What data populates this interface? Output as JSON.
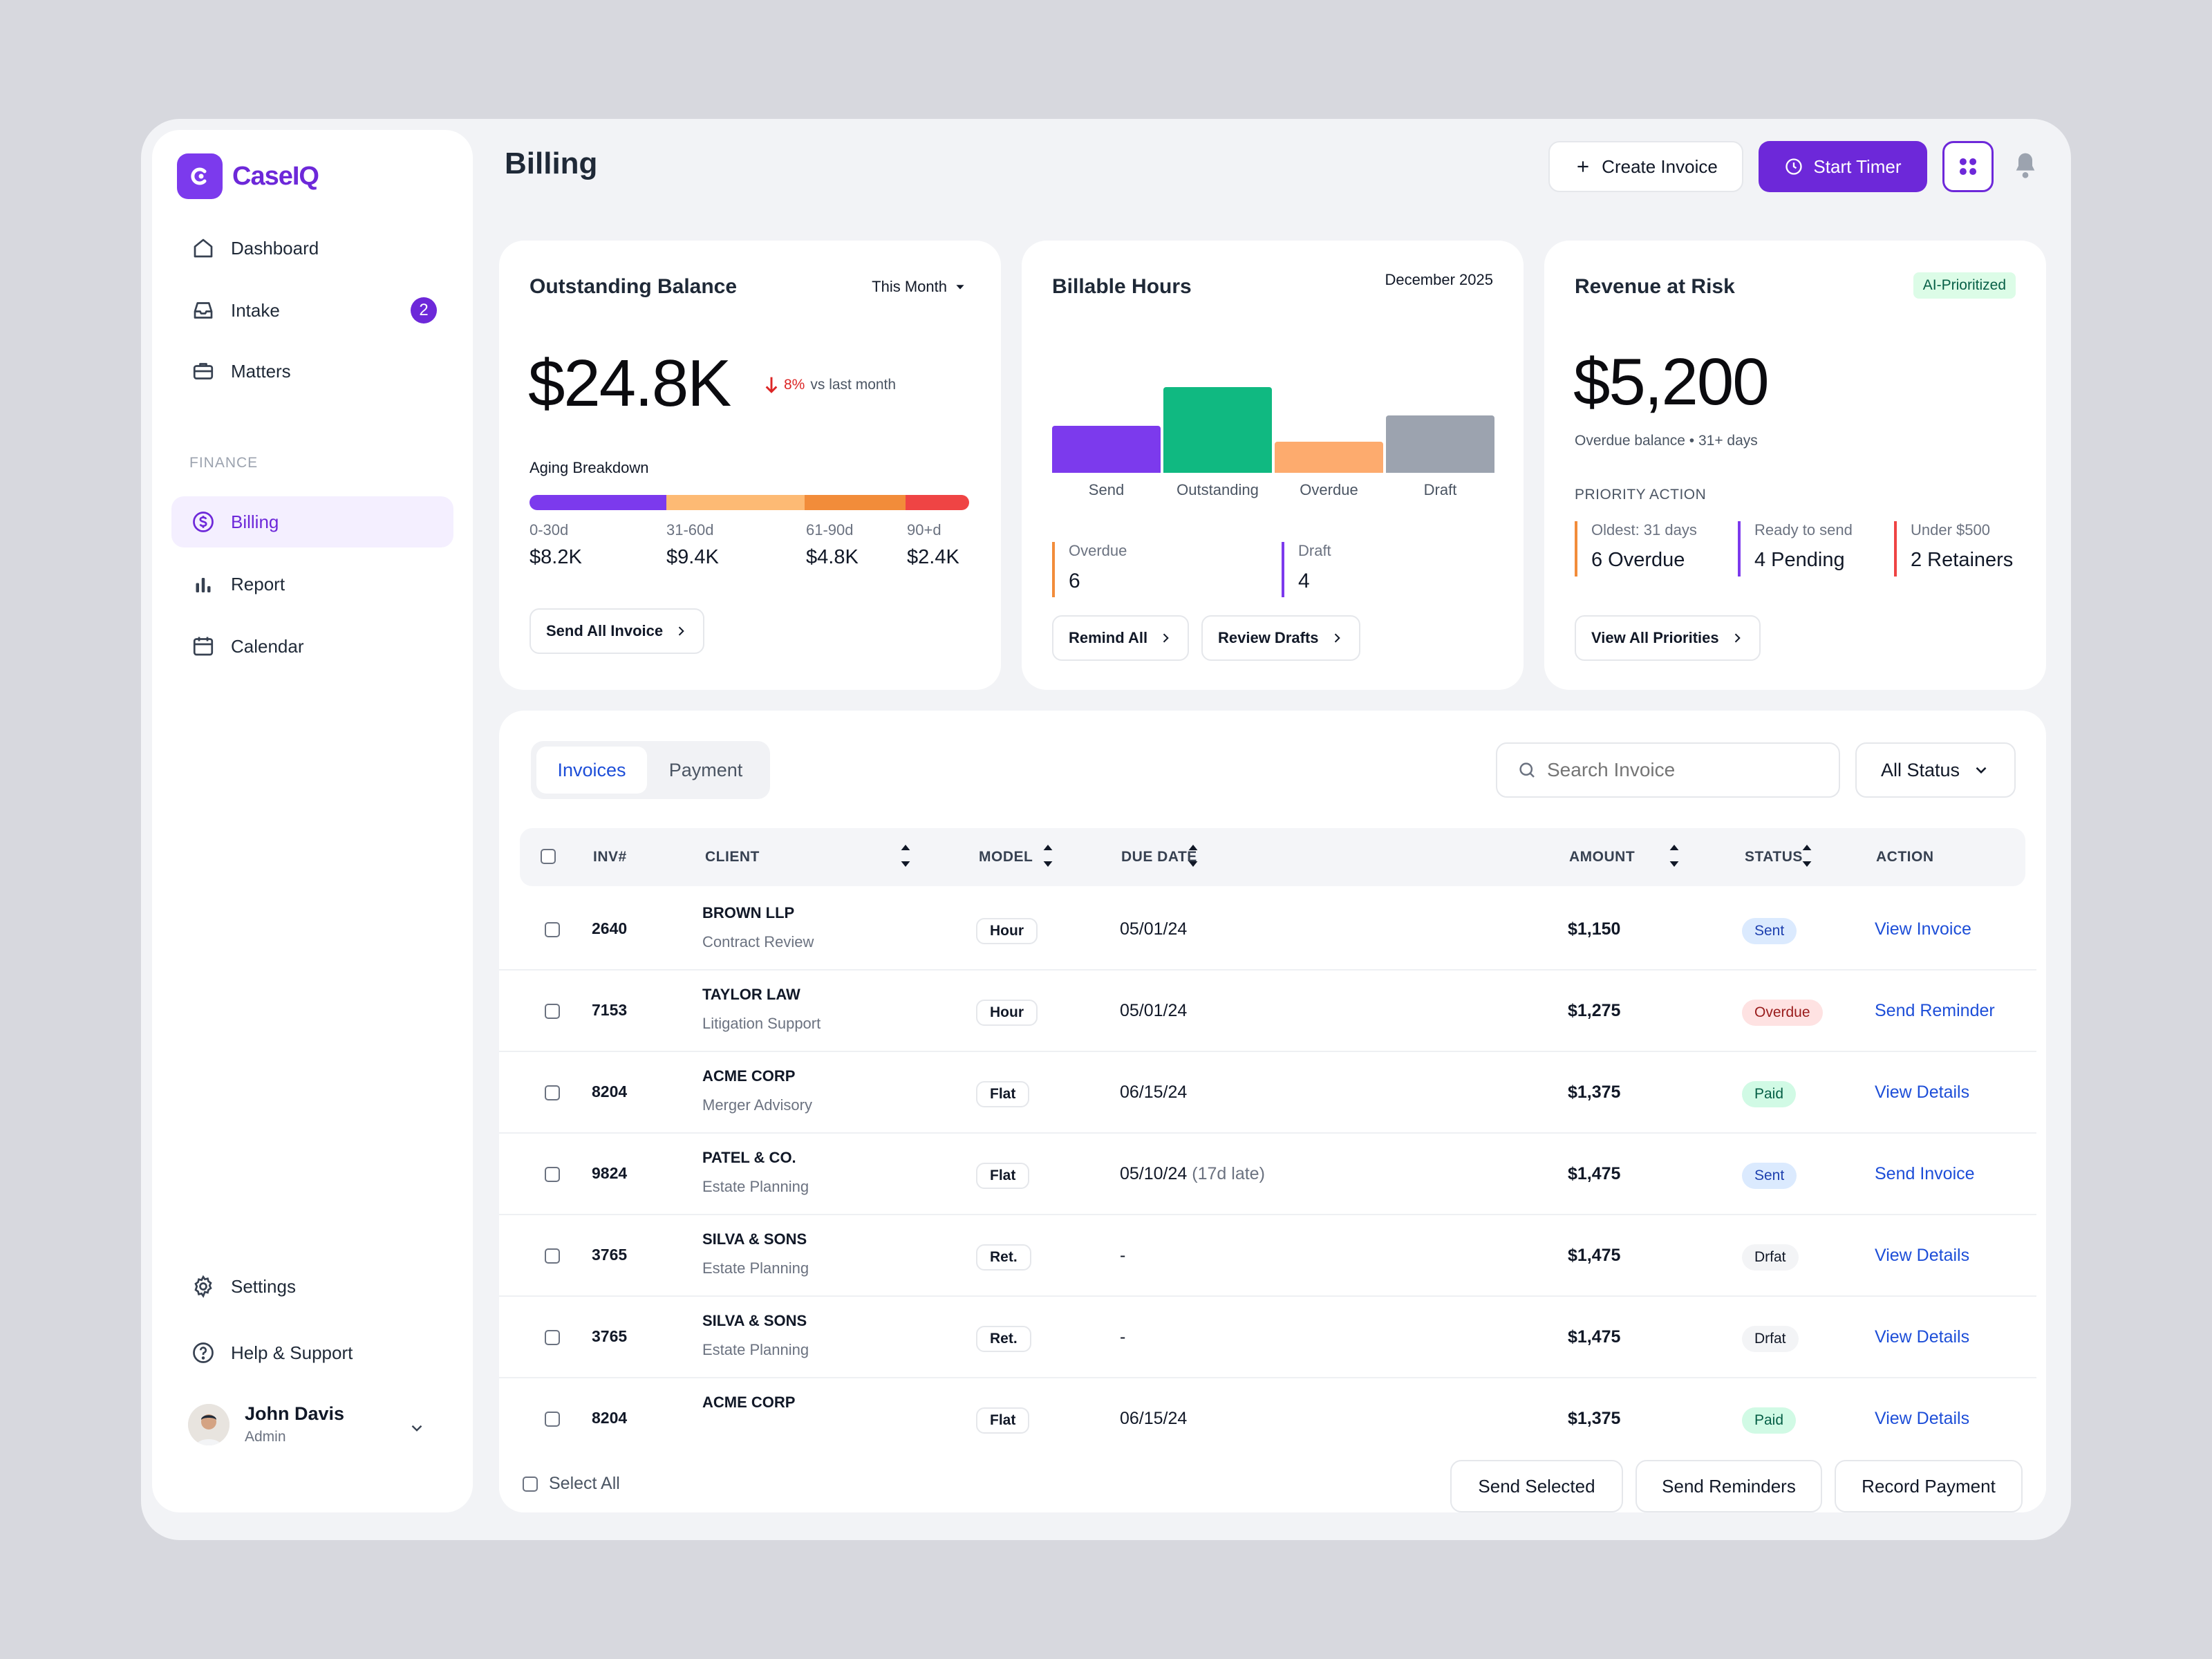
{
  "app": {
    "name": "CaseIQ"
  },
  "sidebar": {
    "items": [
      {
        "label": "Dashboard"
      },
      {
        "label": "Intake",
        "badge": "2"
      },
      {
        "label": "Matters"
      },
      {
        "label": "Billing"
      },
      {
        "label": "Report"
      },
      {
        "label": "Calendar"
      },
      {
        "label": "Settings"
      },
      {
        "label": "Help & Support"
      }
    ],
    "section_finance": "FINANCE",
    "user": {
      "name": "John Davis",
      "role": "Admin"
    }
  },
  "header": {
    "title": "Billing",
    "create_invoice": "Create Invoice",
    "start_timer": "Start Timer"
  },
  "outstanding": {
    "title": "Outstanding Balance",
    "period": "This Month",
    "value": "$24.8K",
    "change": "8%",
    "change_suffix": "vs last month",
    "aging_label": "Aging Breakdown",
    "buckets": [
      {
        "label": "0-30d",
        "value": "$8.2K",
        "color": "#7c3aed"
      },
      {
        "label": "31-60d",
        "value": "$9.4K",
        "color": "#fdba74"
      },
      {
        "label": "61-90d",
        "value": "$4.8K",
        "color": "#f28c3a"
      },
      {
        "label": "90+d",
        "value": "$2.4K",
        "color": "#ef4444"
      }
    ],
    "button": "Send All Invoice"
  },
  "billable": {
    "title": "Billable Hours",
    "date": "December 2025",
    "bars": [
      {
        "label": "Send",
        "level": 0.55,
        "color": "#7c3aed"
      },
      {
        "label": "Outstanding",
        "level": 1.0,
        "color": "#10b981"
      },
      {
        "label": "Overdue",
        "level": 0.36,
        "color": "#fdab6e"
      },
      {
        "label": "Draft",
        "level": 0.67,
        "color": "#9ca3af"
      }
    ],
    "stats": [
      {
        "label": "Overdue",
        "value": "6",
        "color": "#f28c3a"
      },
      {
        "label": "Draft",
        "value": "4",
        "color": "#7c3aed"
      }
    ],
    "remind": "Remind All",
    "review": "Review Drafts"
  },
  "risk": {
    "title": "Revenue at Risk",
    "badge": "AI-Prioritized",
    "value": "$5,200",
    "sub": "Overdue balance • 31+ days",
    "priority_label": "PRIORITY ACTION",
    "items": [
      {
        "label": "Oldest: 31 days",
        "value": "6 Overdue",
        "color": "#f28c3a"
      },
      {
        "label": "Ready to send",
        "value": "4 Pending",
        "color": "#7c3aed"
      },
      {
        "label": "Under $500",
        "value": "2 Retainers",
        "color": "#ef4444"
      }
    ],
    "button": "View All Priorities"
  },
  "table": {
    "tabs": [
      "Invoices",
      "Payment"
    ],
    "search_placeholder": "Search Invoice",
    "filter": "All Status",
    "columns": [
      "INV#",
      "CLIENT",
      "MODEL",
      "DUE DATE",
      "AMOUNT",
      "STATUS",
      "ACTION"
    ],
    "rows": [
      {
        "inv": "2640",
        "client": "BROWN LLP",
        "matter": "Contract Review",
        "model": "Hour",
        "due": "05/01/24",
        "late": "",
        "amount": "$1,150",
        "status": "Sent",
        "action": "View Invoice"
      },
      {
        "inv": "7153",
        "client": "TAYLOR LAW",
        "matter": "Litigation Support",
        "model": "Hour",
        "due": "05/01/24",
        "late": "",
        "amount": "$1,275",
        "status": "Overdue",
        "action": "Send Reminder"
      },
      {
        "inv": "8204",
        "client": "ACME CORP",
        "matter": "Merger Advisory",
        "model": "Flat",
        "due": "06/15/24",
        "late": "",
        "amount": "$1,375",
        "status": "Paid",
        "action": "View Details"
      },
      {
        "inv": "9824",
        "client": "PATEL & CO.",
        "matter": "Estate Planning",
        "model": "Flat",
        "due": "05/10/24",
        "late": "(17d late)",
        "amount": "$1,475",
        "status": "Sent",
        "action": "Send Invoice"
      },
      {
        "inv": "3765",
        "client": "SILVA & SONS",
        "matter": "Estate Planning",
        "model": "Ret.",
        "due": "-",
        "late": "",
        "amount": "$1,475",
        "status": "Drfat",
        "action": "View Details"
      },
      {
        "inv": "3765",
        "client": "SILVA & SONS",
        "matter": "Estate Planning",
        "model": "Ret.",
        "due": "-",
        "late": "",
        "amount": "$1,475",
        "status": "Drfat",
        "action": "View Details"
      },
      {
        "inv": "8204",
        "client": "ACME CORP",
        "matter": "",
        "model": "Flat",
        "due": "06/15/24",
        "late": "",
        "amount": "$1,375",
        "status": "Paid",
        "action": "View Details"
      }
    ],
    "select_all": "Select All",
    "footer_buttons": [
      "Send Selected",
      "Send Reminders",
      "Record Payment"
    ]
  }
}
